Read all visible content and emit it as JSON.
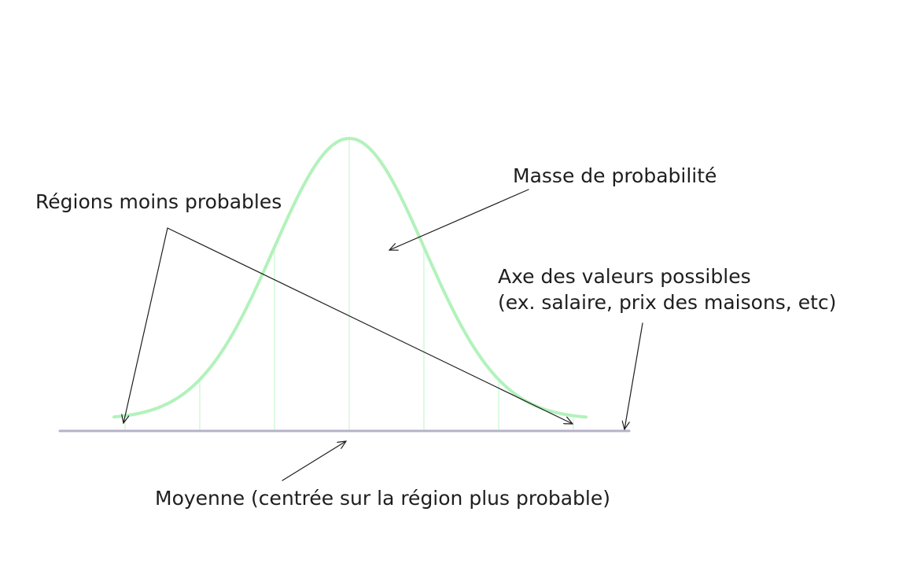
{
  "labels": {
    "probability_mass": "Masse de probabilité",
    "less_probable_regions": "Régions moins probables",
    "value_axis_line1": "Axe des valeurs possibles",
    "value_axis_line2": "(ex. salaire, prix des maisons, etc)",
    "mean": "Moyenne (centrée sur la région plus probable)"
  },
  "colors": {
    "curve": "#b2f2bb",
    "sigma_lines": "#d3f9d8",
    "axis": "#b6b1c9",
    "arrows": "#1e1e1e",
    "text": "#1e1e1e"
  }
}
